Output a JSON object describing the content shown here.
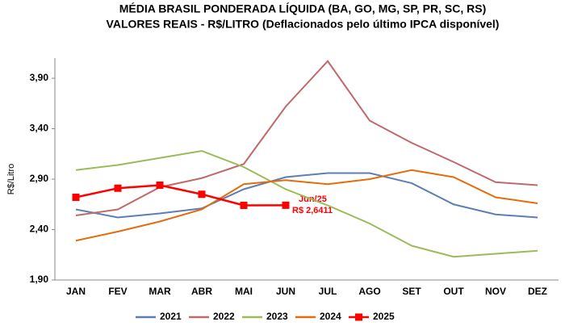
{
  "chart_data": {
    "type": "line",
    "title": "MÉDIA BRASIL PONDERADA LÍQUIDA (BA, GO, MG, SP, PR, SC, RS)",
    "subtitle": "VALORES REAIS - R$/LITRO (Deflacionados  pelo último IPCA disponível)",
    "y_label": "R$/Litro",
    "annotations": [
      "Jun/25",
      "R$ 2,6411"
    ],
    "categories": [
      "JAN",
      "FEV",
      "MAR",
      "ABR",
      "MAI",
      "JUN",
      "JUL",
      "AGO",
      "SET",
      "OUT",
      "NOV",
      "DEZ"
    ],
    "ylim": [
      1.9,
      4.1
    ],
    "yticks": [
      {
        "value": 1.9,
        "label": "1,90"
      },
      {
        "value": 2.4,
        "label": "2,40"
      },
      {
        "value": 2.9,
        "label": "2,90"
      },
      {
        "value": 3.4,
        "label": "3,40"
      },
      {
        "value": 3.9,
        "label": "3,90"
      }
    ],
    "grid": false,
    "legend": "bottom",
    "series": [
      {
        "name": "2021",
        "color": "#5b7fb5",
        "values": [
          2.6,
          2.52,
          2.56,
          2.61,
          2.8,
          2.92,
          2.96,
          2.96,
          2.86,
          2.65,
          2.55,
          2.52
        ]
      },
      {
        "name": "2022",
        "color": "#c0696a",
        "values": [
          2.54,
          2.6,
          2.82,
          2.91,
          3.05,
          3.62,
          4.07,
          3.48,
          3.26,
          3.07,
          2.87,
          2.84
        ]
      },
      {
        "name": "2023",
        "color": "#9bbb59",
        "values": [
          2.99,
          3.04,
          3.11,
          3.18,
          3.02,
          2.8,
          2.64,
          2.46,
          2.24,
          2.13,
          2.16,
          2.19
        ]
      },
      {
        "name": "2024",
        "color": "#e46c0a",
        "values": [
          2.29,
          2.38,
          2.48,
          2.6,
          2.85,
          2.89,
          2.85,
          2.9,
          2.99,
          2.92,
          2.72,
          2.66
        ]
      },
      {
        "name": "2025",
        "color": "#ff0000",
        "marker": "square",
        "values": [
          2.72,
          2.81,
          2.84,
          2.75,
          2.64,
          2.6411,
          null,
          null,
          null,
          null,
          null,
          null
        ]
      }
    ]
  }
}
